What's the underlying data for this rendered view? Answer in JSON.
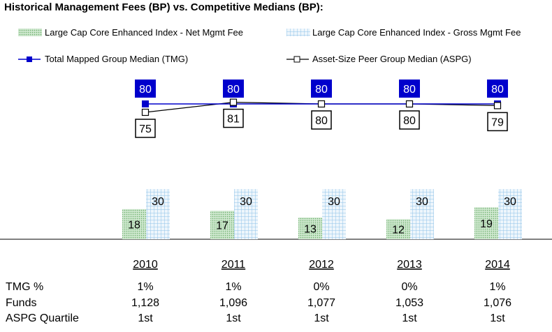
{
  "title": "Historical Management Fees (BP) vs. Competitive Medians (BP):",
  "colors": {
    "tmg": "#0000cc",
    "aspg": "#000000",
    "net_fill": "#cfe8cf",
    "net_dot": "#7fbf7f",
    "gross_fill": "#eaf3fb",
    "gross_grid": "#8fc3e8"
  },
  "chart_data": {
    "type": "bar",
    "categories": [
      "2010",
      "2011",
      "2012",
      "2013",
      "2014"
    ],
    "series": [
      {
        "name": "Large Cap Core Enhanced Index - Net Mgmt Fee",
        "type": "bar",
        "values": [
          18,
          17,
          13,
          12,
          19
        ]
      },
      {
        "name": "Large Cap Core Enhanced Index - Gross Mgmt Fee",
        "type": "bar",
        "values": [
          30,
          30,
          30,
          30,
          30
        ]
      },
      {
        "name": "Total Mapped Group Median (TMG)",
        "type": "line",
        "values": [
          80,
          80,
          80,
          80,
          80
        ]
      },
      {
        "name": "Asset-Size Peer Group Median (ASPG)",
        "type": "line",
        "values": [
          75,
          81,
          80,
          80,
          79
        ]
      }
    ],
    "table": {
      "rows": [
        {
          "label": "TMG %",
          "values": [
            "1%",
            "1%",
            "0%",
            "0%",
            "1%"
          ]
        },
        {
          "label": "Funds",
          "values": [
            "1,128",
            "1,096",
            "1,077",
            "1,053",
            "1,076"
          ]
        },
        {
          "label": "ASPG Quartile",
          "values": [
            "1st",
            "1st",
            "1st",
            "1st",
            "1st"
          ]
        }
      ]
    }
  }
}
